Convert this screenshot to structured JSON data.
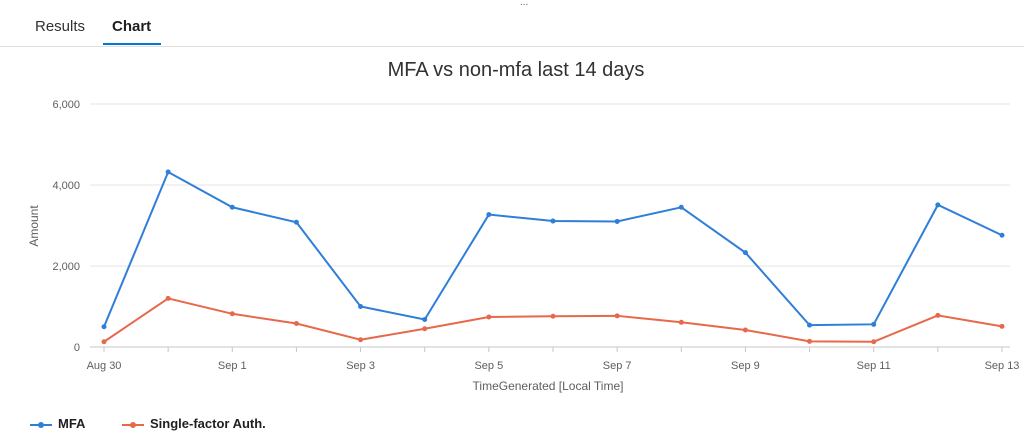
{
  "tabs": {
    "results_label": "Results",
    "chart_label": "Chart",
    "handle": "..."
  },
  "chart_data": {
    "type": "line",
    "title": "MFA vs non-mfa last 14 days",
    "xlabel": "TimeGenerated [Local Time]",
    "ylabel": "Amount",
    "ylim": [
      0,
      6000
    ],
    "yticks": [
      0,
      2000,
      4000,
      6000
    ],
    "ytick_labels": [
      "0",
      "2,000",
      "4,000",
      "6,000"
    ],
    "x": [
      "Aug 30",
      "Aug 31",
      "Sep 1",
      "Sep 2",
      "Sep 3",
      "Sep 4",
      "Sep 5",
      "Sep 6",
      "Sep 7",
      "Sep 8",
      "Sep 9",
      "Sep 10",
      "Sep 11",
      "Sep 12",
      "Sep 13"
    ],
    "xtick_labels": [
      "Aug 30",
      "",
      "Sep 1",
      "",
      "Sep 3",
      "",
      "Sep 5",
      "",
      "Sep 7",
      "",
      "Sep 9",
      "",
      "Sep 11",
      "",
      "Sep 13"
    ],
    "grid": true,
    "legend_position": "bottom-left",
    "series": [
      {
        "name": "MFA",
        "color": "#2f7ed8",
        "values": [
          500,
          4320,
          3450,
          3080,
          1000,
          680,
          3270,
          3110,
          3100,
          3450,
          2330,
          540,
          560,
          3510,
          2760
        ]
      },
      {
        "name": "Single-factor Auth.",
        "color": "#e8684a",
        "values": [
          130,
          1200,
          820,
          580,
          180,
          450,
          740,
          760,
          770,
          610,
          420,
          140,
          130,
          780,
          510
        ]
      }
    ]
  }
}
